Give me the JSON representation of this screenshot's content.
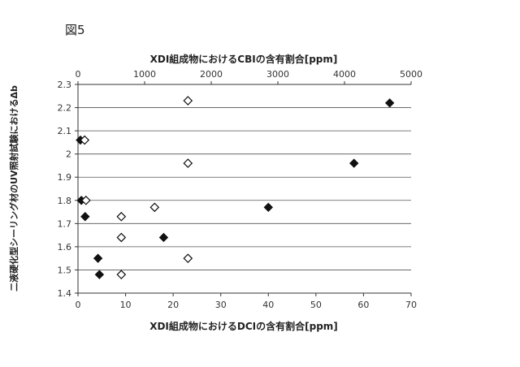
{
  "figure_label": "図5",
  "chart_data": {
    "type": "scatter",
    "title": "",
    "x_bottom": {
      "label": "XDI組成物におけるDCIの含有割合[ppm]",
      "lim": [
        0,
        70
      ],
      "ticks": [
        "0",
        "10",
        "20",
        "30",
        "40",
        "50",
        "60",
        "70"
      ]
    },
    "x_top": {
      "label": "XDI組成物におけるCBIの含有割合[ppm]",
      "lim": [
        0,
        5000
      ],
      "ticks": [
        "0",
        "1000",
        "2000",
        "3000",
        "4000",
        "5000"
      ]
    },
    "y": {
      "label": "二液硬化型シーリング材のUV照射試験におけるΔb",
      "lim": [
        1.4,
        2.3
      ],
      "ticks": [
        "1.4",
        "1.5",
        "1.6",
        "1.7",
        "1.8",
        "1.9",
        "2",
        "2.1",
        "2.2",
        "2.3"
      ]
    },
    "grid": "horizontal",
    "series": [
      {
        "marker": "filled-diamond",
        "axis": "bottom",
        "points": [
          {
            "x": 0.5,
            "y": 2.06
          },
          {
            "x": 0.7,
            "y": 1.8
          },
          {
            "x": 1.5,
            "y": 1.73
          },
          {
            "x": 4.2,
            "y": 1.55
          },
          {
            "x": 4.5,
            "y": 1.48
          },
          {
            "x": 18.0,
            "y": 1.64
          },
          {
            "x": 40.0,
            "y": 1.77
          },
          {
            "x": 58.0,
            "y": 1.96
          },
          {
            "x": 65.5,
            "y": 2.22
          }
        ]
      },
      {
        "marker": "open-diamond",
        "axis": "top",
        "points": [
          {
            "x": 100,
            "y": 2.06
          },
          {
            "x": 120,
            "y": 1.8
          },
          {
            "x": 650,
            "y": 1.73
          },
          {
            "x": 650,
            "y": 1.64
          },
          {
            "x": 650,
            "y": 1.48
          },
          {
            "x": 1150,
            "y": 1.77
          },
          {
            "x": 1650,
            "y": 2.23
          },
          {
            "x": 1650,
            "y": 1.96
          },
          {
            "x": 1650,
            "y": 1.55
          }
        ]
      }
    ]
  }
}
